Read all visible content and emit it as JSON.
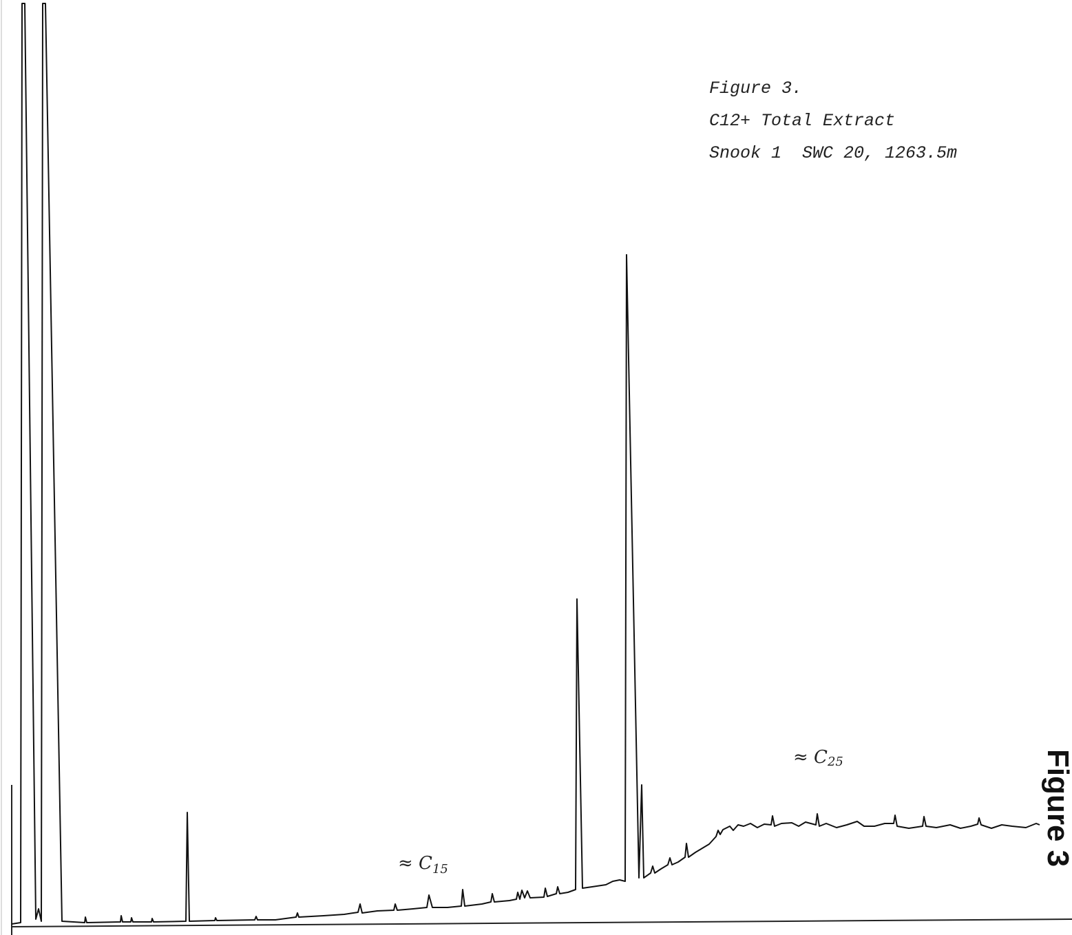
{
  "header": {
    "lines": [
      "Figure 3.",
      "C12+ Total Extract",
      "Snook 1  SWC 20, 1263.5m"
    ]
  },
  "annotations": [
    {
      "text": "≈ C",
      "subscript": "15"
    },
    {
      "text": "≈ C",
      "subscript": "25"
    }
  ],
  "page_label": "Figure 3"
}
